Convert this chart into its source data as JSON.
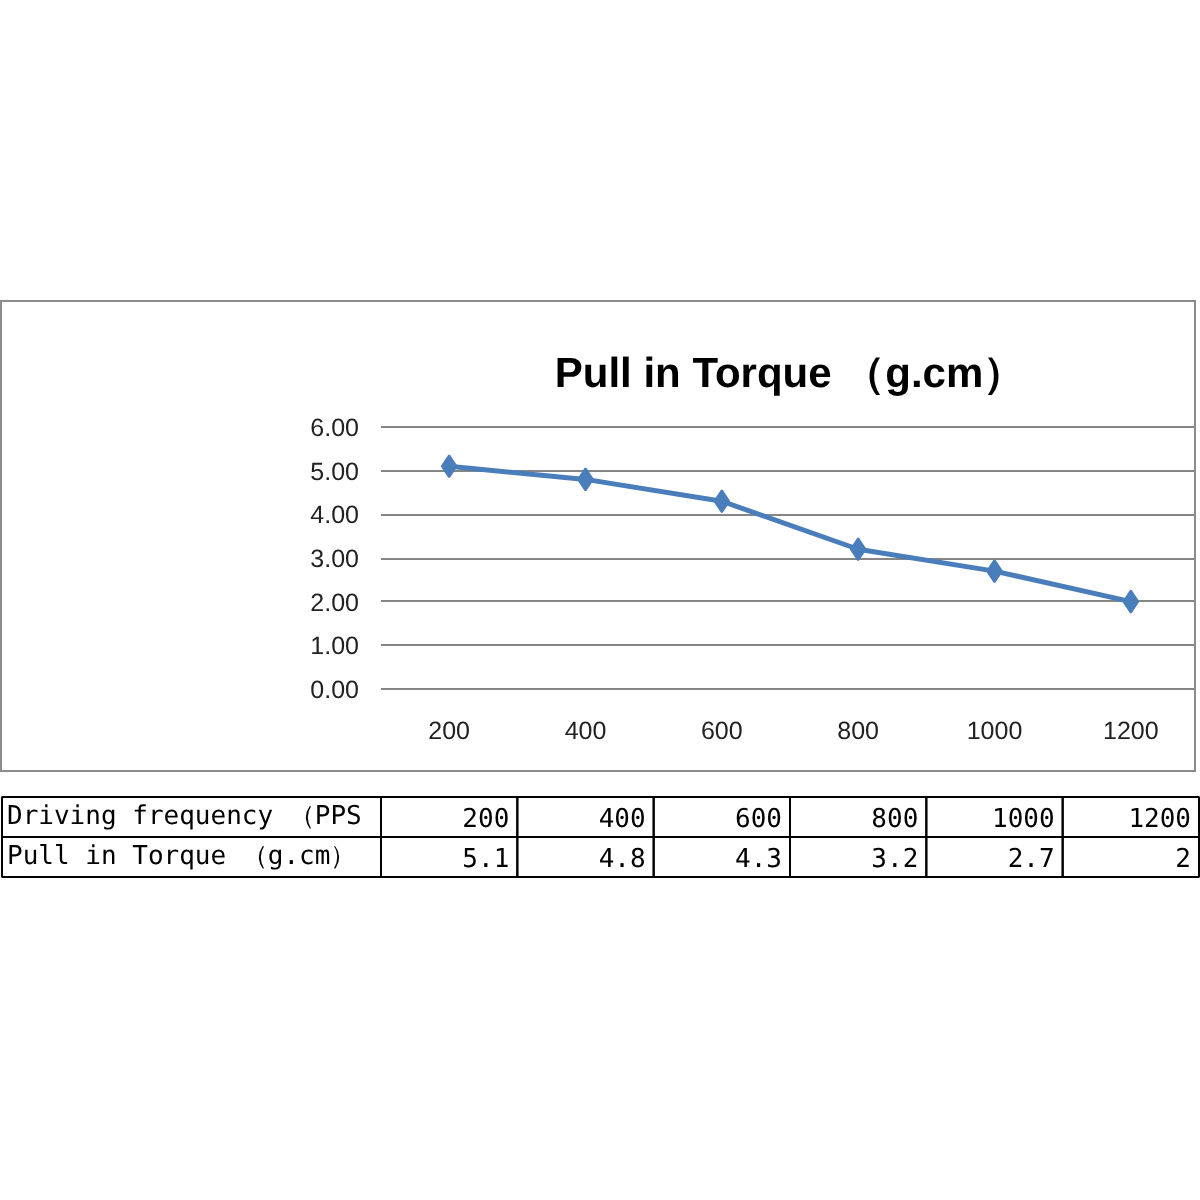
{
  "chart_data": {
    "type": "line",
    "title": "Pull in Torque （g.cm）",
    "xlabel": "Driving frequency （PPS",
    "categories": [
      "200",
      "400",
      "600",
      "800",
      "1000",
      "1200"
    ],
    "series": [
      {
        "name": "Pull in Torque （g.cm）",
        "color": "#4a7ebb",
        "values": [
          5.1,
          4.8,
          4.3,
          3.2,
          2.7,
          2
        ],
        "value_labels": [
          "5.1",
          "4.8",
          "4.3",
          "3.2",
          "2.7",
          "2"
        ]
      }
    ],
    "ylim": [
      0,
      6
    ],
    "yticks": [
      {
        "value": 0,
        "label": "0.00"
      },
      {
        "value": 1,
        "label": "1.00"
      },
      {
        "value": 2,
        "label": "2.00"
      },
      {
        "value": 3,
        "label": "3.00"
      },
      {
        "value": 4,
        "label": "4.00"
      },
      {
        "value": 5,
        "label": "5.00"
      },
      {
        "value": 6,
        "label": "6.00"
      }
    ],
    "grid": "y",
    "marker": "diamond",
    "line_style": "solid"
  }
}
